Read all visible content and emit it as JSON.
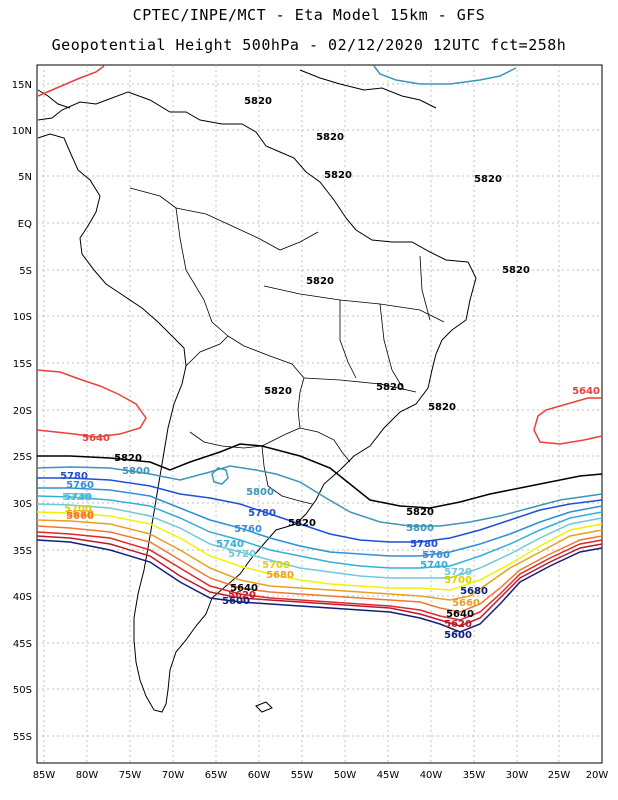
{
  "header": {
    "line1": "CPTEC/INPE/MCT -  Eta Model 15km - GFS",
    "line2": "Geopotential Height 500hPa - 02/12/2020 12UTC fct=258h"
  },
  "axes": {
    "lat_labels": [
      "15N",
      "10N",
      "5N",
      "EQ",
      "5S",
      "10S",
      "15S",
      "20S",
      "25S",
      "30S",
      "35S",
      "40S",
      "45S",
      "50S",
      "55S"
    ],
    "lon_labels": [
      "85W",
      "80W",
      "75W",
      "70W",
      "65W",
      "60W",
      "55W",
      "50W",
      "45W",
      "40W",
      "35W",
      "30W",
      "25W",
      "20W"
    ]
  },
  "contours": [
    {
      "value": "5640",
      "color": "#e8413c"
    },
    {
      "value": "5820",
      "color": "#000000"
    },
    {
      "value": "5800",
      "color": "#3a96b8"
    },
    {
      "value": "5780",
      "color": "#1f4fd8"
    },
    {
      "value": "5760",
      "color": "#2f8fd8"
    },
    {
      "value": "5740",
      "color": "#32b0d8"
    },
    {
      "value": "5720",
      "color": "#6fc9d8"
    },
    {
      "value": "5700",
      "color": "#f2f200"
    },
    {
      "value": "5680",
      "color": "#e8a020"
    },
    {
      "value": "5660",
      "color": "#f07830"
    },
    {
      "value": "5640",
      "color": "#e02828"
    },
    {
      "value": "5620",
      "color": "#c0182a"
    },
    {
      "value": "5600",
      "color": "#10207a"
    }
  ],
  "labels": {
    "l5820_a": "5820",
    "l5820_b": "5820",
    "l5820_c": "5820",
    "l5820_d": "5820",
    "l5820_e": "5820",
    "l5820_f": "5820",
    "l5820_g": "5820",
    "l5820_h": "5820",
    "l5820_i": "5820",
    "l5820_j": "5820",
    "l5820_k": "5820",
    "l5820_l": "5820",
    "l5640_w": "5640",
    "l5640_e": "5640",
    "l5800_a": "5800",
    "l5800_b": "5800",
    "l5800_c": "5800",
    "l5780_a": "5780",
    "l5780_b": "5780",
    "l5780_c": "5780",
    "l5760_a": "5760",
    "l5760_b": "5760",
    "l5760_c": "5760",
    "l5740_a": "5740",
    "l5740_b": "5740",
    "l5740_c": "5740",
    "l5720_a": "5720",
    "l5720_b": "5720",
    "l5720_c": "5720",
    "l5700_a": "5700",
    "l5700_b": "5700",
    "l5700_c": "5700",
    "l5680_a": "5680",
    "l5680_b": "5680",
    "l5680_c": "5680",
    "l5660_a": "5660",
    "l5660_b": "5660",
    "l5640_a": "5640",
    "l5640_b": "5640",
    "l5620_a": "5620",
    "l5620_b": "5620",
    "l5600_a": "5600",
    "l5600_b": "5600"
  }
}
